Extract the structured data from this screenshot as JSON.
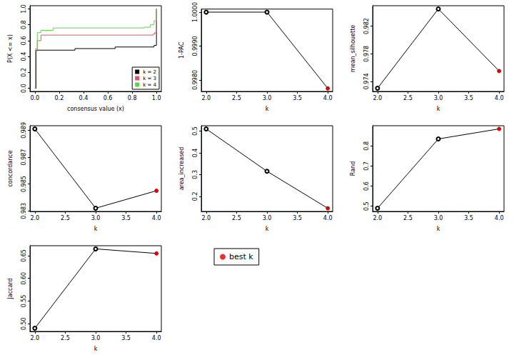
{
  "chart_data": [
    {
      "type": "line",
      "line_style": "step",
      "xlabel": "consensus value (x)",
      "ylabel": "P(X <= x)",
      "xlim": [
        -0.04,
        1.04
      ],
      "ylim": [
        -0.04,
        1.04
      ],
      "xticks": [
        {
          "value": 0,
          "label": "0.0"
        },
        0.2,
        0.4,
        0.6,
        0.8,
        {
          "value": 1,
          "label": "1.0"
        }
      ],
      "yticks": [
        {
          "value": 0,
          "label": "0.0"
        },
        0.2,
        0.4,
        0.6,
        0.8,
        {
          "value": 1,
          "label": "1.0"
        }
      ],
      "legend": "bottom-right",
      "series": [
        {
          "name": "k = 2",
          "color": "#000000",
          "x": [
            0,
            0.01,
            0.33,
            0.66,
            0.98,
            1.0
          ],
          "values": [
            0,
            0.48,
            0.5,
            0.52,
            0.54,
            1.0
          ]
        },
        {
          "name": "k = 3",
          "color": "#df536b",
          "x": [
            0,
            0.005,
            0.02,
            0.05,
            0.97,
            0.985,
            1.0
          ],
          "values": [
            0,
            0.47,
            0.6,
            0.67,
            0.68,
            0.7,
            1.0
          ]
        },
        {
          "name": "k = 4",
          "color": "#61d04f",
          "x": [
            0,
            0.005,
            0.02,
            0.05,
            0.15,
            0.9,
            0.95,
            0.98,
            1.0
          ],
          "values": [
            0,
            0.5,
            0.7,
            0.73,
            0.76,
            0.77,
            0.8,
            0.85,
            1.0
          ]
        }
      ]
    },
    {
      "type": "line",
      "marker": "circle_open",
      "xlabel": "k",
      "ylabel": "1-PAC",
      "color": "#000000",
      "x": [
        2,
        3,
        4
      ],
      "values": [
        1.0,
        1.0,
        0.99775
      ],
      "colors": [
        "#000000",
        "#000000",
        "#dd0000"
      ],
      "xlim": [
        1.92,
        4.08
      ],
      "ylim": [
        0.99766,
        1.00009
      ],
      "xticks": [
        {
          "value": 2,
          "label": "2.0"
        },
        2.5,
        {
          "value": 3,
          "label": "3.0"
        },
        3.5,
        {
          "value": 4,
          "label": "4.0"
        }
      ],
      "yticks": [
        {
          "value": 0.998,
          "label": "0.9980"
        },
        {
          "value": 0.999,
          "label": "0.9990"
        },
        {
          "value": 1,
          "label": "1.0000"
        }
      ]
    },
    {
      "type": "line",
      "marker": "circle_open",
      "xlabel": "k",
      "ylabel": "mean_silhouette",
      "color": "#000000",
      "x": [
        2,
        3,
        4
      ],
      "values": [
        0.973,
        0.9845,
        0.9755
      ],
      "colors": [
        "#000000",
        "#000000",
        "#dd0000"
      ],
      "xlim": [
        1.92,
        4.08
      ],
      "ylim": [
        0.97254,
        0.98496
      ],
      "xticks": [
        {
          "value": 2,
          "label": "2.0"
        },
        2.5,
        {
          "value": 3,
          "label": "3.0"
        },
        3.5,
        {
          "value": 4,
          "label": "4.0"
        }
      ],
      "yticks": [
        0.974,
        0.978,
        0.982
      ]
    },
    {
      "type": "line",
      "marker": "circle_open",
      "xlabel": "k",
      "ylabel": "concordance",
      "color": "#000000",
      "x": [
        2,
        3,
        4
      ],
      "values": [
        0.9891,
        0.9832,
        0.9845
      ],
      "colors": [
        "#000000",
        "#000000",
        "#dd0000"
      ],
      "xlim": [
        1.92,
        4.08
      ],
      "ylim": [
        0.98296,
        0.98934
      ],
      "xticks": [
        {
          "value": 2,
          "label": "2.0"
        },
        2.5,
        {
          "value": 3,
          "label": "3.0"
        },
        3.5,
        {
          "value": 4,
          "label": "4.0"
        }
      ],
      "yticks": [
        0.983,
        0.985,
        0.987,
        0.989
      ]
    },
    {
      "type": "line",
      "marker": "circle_open",
      "xlabel": "k",
      "ylabel": "area_increased",
      "color": "#000000",
      "x": [
        2,
        3,
        4
      ],
      "values": [
        0.51,
        0.315,
        0.145
      ],
      "colors": [
        "#000000",
        "#000000",
        "#dd0000"
      ],
      "xlim": [
        1.92,
        4.08
      ],
      "ylim": [
        0.1304,
        0.5246
      ],
      "xticks": [
        {
          "value": 2,
          "label": "2.0"
        },
        2.5,
        {
          "value": 3,
          "label": "3.0"
        },
        3.5,
        {
          "value": 4,
          "label": "4.0"
        }
      ],
      "yticks": [
        0.2,
        0.3,
        0.4,
        0.5
      ]
    },
    {
      "type": "line",
      "marker": "circle_open",
      "xlabel": "k",
      "ylabel": "Rand",
      "color": "#000000",
      "x": [
        2,
        3,
        4
      ],
      "values": [
        0.49,
        0.835,
        0.885
      ],
      "colors": [
        "#000000",
        "#000000",
        "#dd0000"
      ],
      "xlim": [
        1.92,
        4.08
      ],
      "ylim": [
        0.4742,
        0.9008
      ],
      "xticks": [
        {
          "value": 2,
          "label": "2.0"
        },
        2.5,
        {
          "value": 3,
          "label": "3.0"
        },
        3.5,
        {
          "value": 4,
          "label": "4.0"
        }
      ],
      "yticks": [
        0.5,
        0.6,
        0.7,
        0.8
      ]
    },
    {
      "type": "line",
      "marker": "circle_open",
      "xlabel": "k",
      "ylabel": "Jaccard",
      "color": "#000000",
      "x": [
        2,
        3,
        4
      ],
      "values": [
        0.49,
        0.665,
        0.655
      ],
      "colors": [
        "#000000",
        "#000000",
        "#dd0000"
      ],
      "xlim": [
        1.92,
        4.08
      ],
      "ylim": [
        0.483,
        0.672
      ],
      "xticks": [
        {
          "value": 2,
          "label": "2.0"
        },
        2.5,
        {
          "value": 3,
          "label": "3.0"
        },
        3.5,
        {
          "value": 4,
          "label": "4.0"
        }
      ],
      "yticks": [
        {
          "value": 0.5,
          "label": "0.50"
        },
        0.55,
        {
          "value": 0.6,
          "label": "0.60"
        },
        0.65
      ]
    },
    {
      "type": "legend",
      "series": [
        {
          "name": "best k",
          "color": "#dd0000",
          "marker": "circle"
        }
      ]
    }
  ]
}
